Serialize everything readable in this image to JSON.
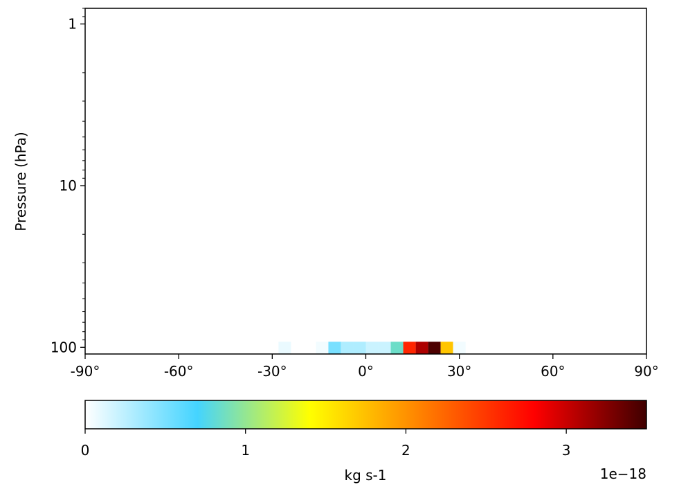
{
  "chart_data": {
    "type": "heatmap",
    "title": "",
    "xlabel": "",
    "ylabel": "Pressure (hPa)",
    "x_scale": "linear",
    "y_scale": "log",
    "xlim": [
      -90,
      90
    ],
    "ylim": [
      110,
      0.8
    ],
    "x_ticks": [
      {
        "value": -90,
        "label": "-90°"
      },
      {
        "value": -60,
        "label": "-60°"
      },
      {
        "value": -30,
        "label": "-30°"
      },
      {
        "value": 0,
        "label": "0°"
      },
      {
        "value": 30,
        "label": "30°"
      },
      {
        "value": 60,
        "label": "60°"
      },
      {
        "value": 90,
        "label": "90°"
      }
    ],
    "y_ticks": [
      {
        "value": 1,
        "label": "1"
      },
      {
        "value": 10,
        "label": "10"
      },
      {
        "value": 100,
        "label": "100"
      }
    ],
    "pressure_level": 100,
    "cell_width_deg": 4,
    "cells": [
      {
        "lat": -26,
        "value": 8e-20
      },
      {
        "lat": -14,
        "value": 5e-20
      },
      {
        "lat": -10,
        "value": 5e-19
      },
      {
        "lat": -6,
        "value": 3e-19
      },
      {
        "lat": -2,
        "value": 3e-19
      },
      {
        "lat": 2,
        "value": 2e-19
      },
      {
        "lat": 6,
        "value": 2e-19
      },
      {
        "lat": 10,
        "value": 8.5e-19
      },
      {
        "lat": 14,
        "value": 2.6e-18
      },
      {
        "lat": 18,
        "value": 3.1e-18
      },
      {
        "lat": 22,
        "value": 3.45e-18
      },
      {
        "lat": 26,
        "value": 1.72e-18
      },
      {
        "lat": 30,
        "value": 5e-20
      }
    ],
    "colorbar": {
      "label": "kg s-1",
      "offset_label": "1e−18",
      "min": 0,
      "max": 3.5,
      "ticks": [
        {
          "value": 0,
          "label": "0"
        },
        {
          "value": 1,
          "label": "1"
        },
        {
          "value": 2,
          "label": "2"
        },
        {
          "value": 3,
          "label": "3"
        }
      ],
      "colormap": [
        "#ffffff",
        "#44d4ff",
        "#ffff00",
        "#ff8000",
        "#ff0000",
        "#3f0000"
      ]
    }
  }
}
